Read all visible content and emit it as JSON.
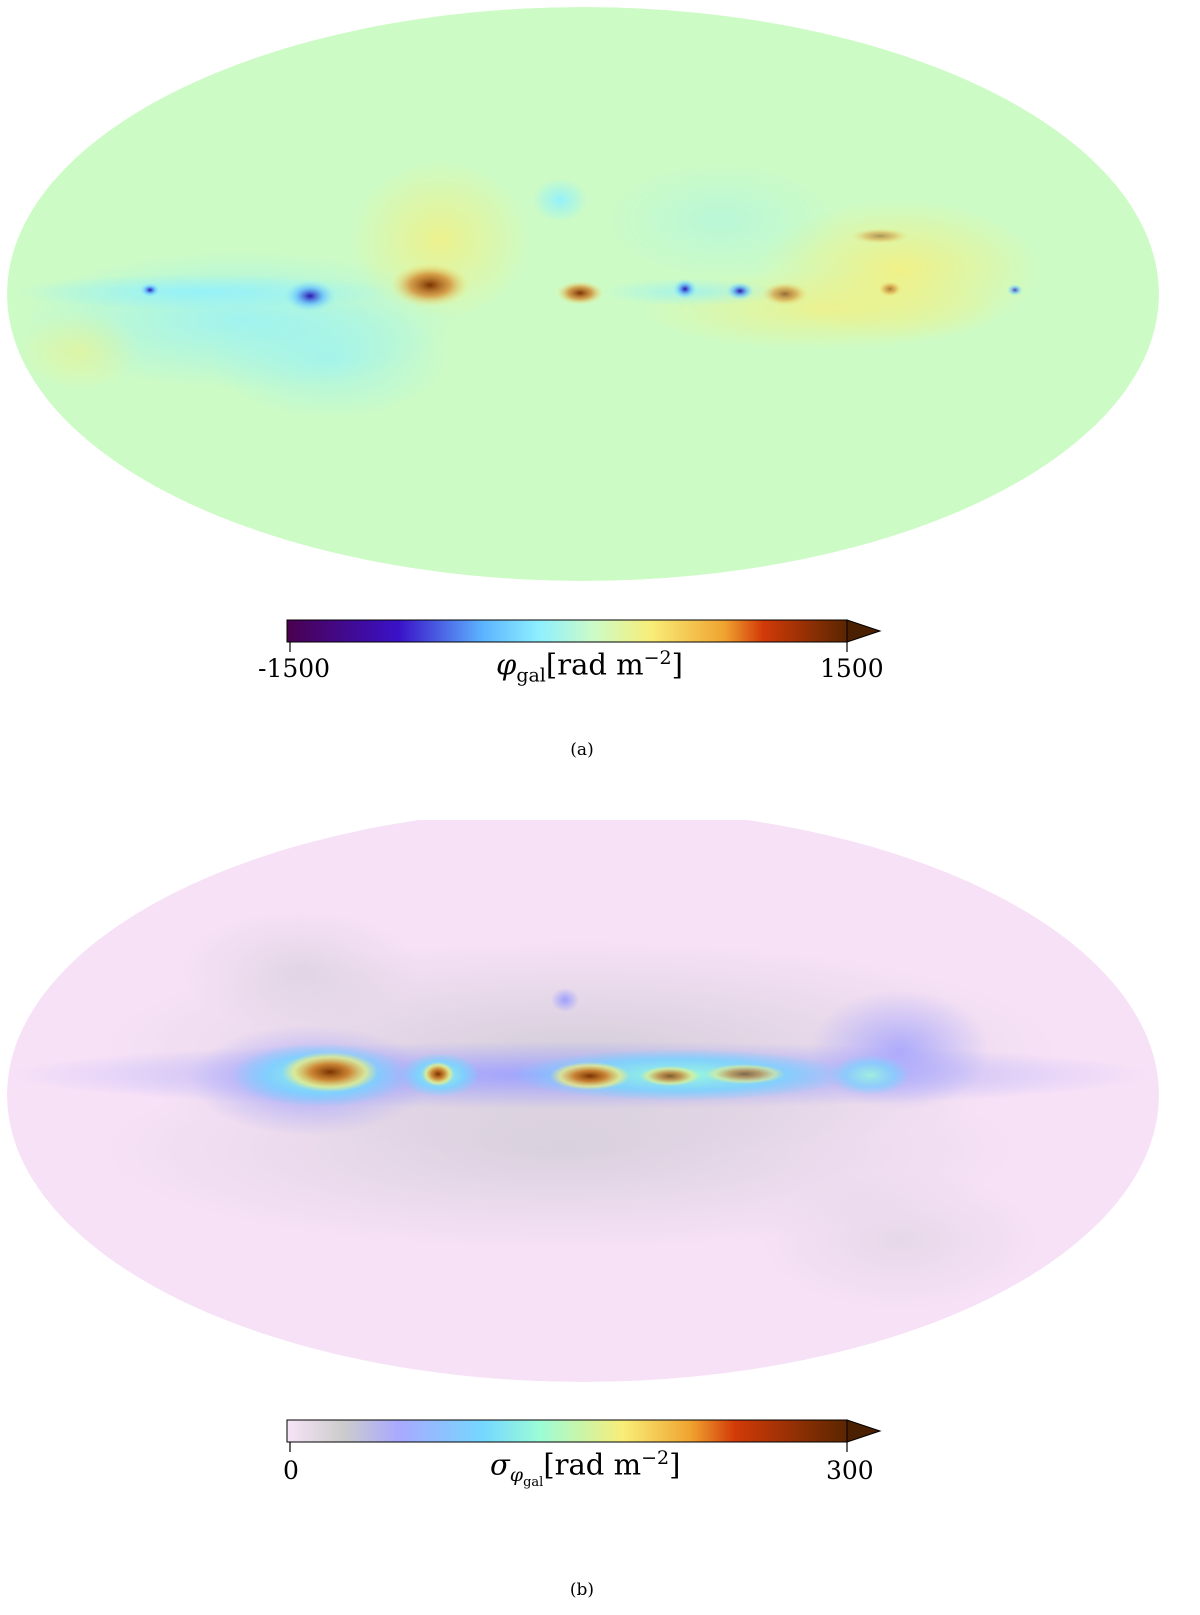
{
  "panels": [
    {
      "id": "a",
      "caption": "(a)",
      "colorbar": {
        "min_label": "-1500",
        "max_label": "1500",
        "symbol": "φ",
        "subscript": "gal",
        "unit": "[rad m",
        "exponent": "−2",
        "unit_close": "]",
        "colors": [
          "#4a004f",
          "#3a12c8",
          "#5cb4ff",
          "#8ef0ff",
          "#cdfbc5",
          "#f8ee78",
          "#f0a430",
          "#d23a08",
          "#7a3200",
          "#4a2000"
        ]
      },
      "map": {
        "background": "#cdfbc5"
      }
    },
    {
      "id": "b",
      "caption": "(b)",
      "colorbar": {
        "min_label": "0",
        "max_label": "300",
        "symbol": "σ",
        "subscript_symbol": "φ",
        "subscript": "gal",
        "unit": "[rad m",
        "exponent": "−2",
        "unit_close": "]",
        "colors": [
          "#f7e4f7",
          "#cccccc",
          "#a9a9ff",
          "#75d7ff",
          "#9bfcd8",
          "#f8ee78",
          "#f0a430",
          "#d23a08",
          "#7a3200",
          "#4a2000"
        ]
      },
      "map": {
        "background": "#f7e1f7"
      }
    }
  ]
}
